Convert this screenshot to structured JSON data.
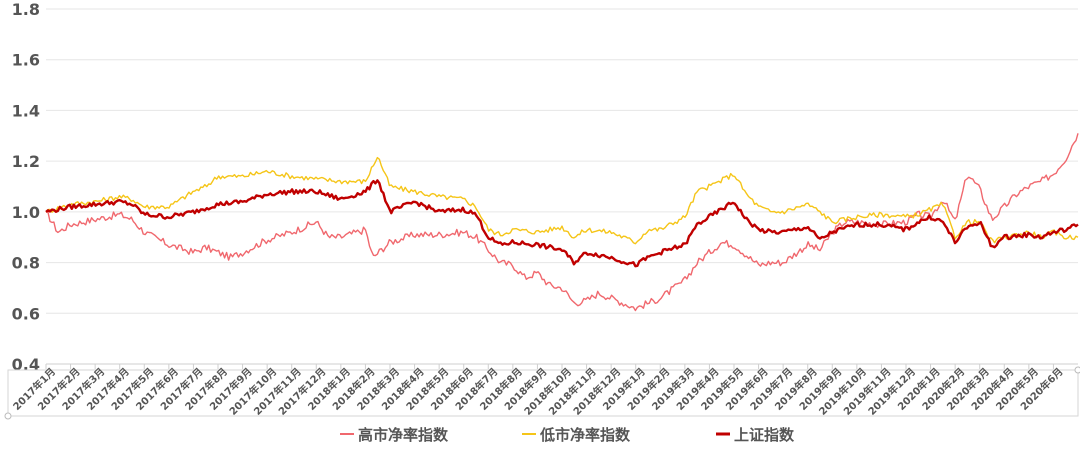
{
  "chart_data": {
    "type": "line",
    "title": "",
    "xlabel": "",
    "ylabel": "",
    "ylim": [
      0.4,
      1.8
    ],
    "yticks": [
      "0.4",
      "0.6",
      "0.8",
      "1.0",
      "1.2",
      "1.4",
      "1.6",
      "1.8"
    ],
    "grid": "horizontal",
    "legend_position": "bottom",
    "categories": [
      "2017年1月",
      "2017年2月",
      "2017年3月",
      "2017年4月",
      "2017年5月",
      "2017年6月",
      "2017年7月",
      "2017年8月",
      "2017年9月",
      "2017年10月",
      "2017年11月",
      "2017年12月",
      "2018年1月",
      "2018年2月",
      "2018年3月",
      "2018年4月",
      "2018年5月",
      "2018年6月",
      "2018年7月",
      "2018年8月",
      "2018年9月",
      "2018年10月",
      "2018年11月",
      "2018年12月",
      "2019年1月",
      "2019年2月",
      "2019年3月",
      "2019年4月",
      "2019年5月",
      "2019年6月",
      "2019年7月",
      "2019年8月",
      "2019年9月",
      "2019年10月",
      "2019年11月",
      "2019年12月",
      "2020年1月",
      "2020年2月",
      "2020年3月",
      "2020年4月",
      "2020年5月",
      "2020年6月"
    ],
    "series": [
      {
        "name": "高市净率指数",
        "color": "#f0686e",
        "width": 1.4,
        "points": [
          [
            0,
            1.0
          ],
          [
            0.5,
            0.92
          ],
          [
            1,
            0.95
          ],
          [
            2,
            0.97
          ],
          [
            3,
            0.99
          ],
          [
            3.5,
            0.97
          ],
          [
            4,
            0.92
          ],
          [
            5,
            0.87
          ],
          [
            6,
            0.84
          ],
          [
            6.5,
            0.86
          ],
          [
            7,
            0.84
          ],
          [
            7.5,
            0.82
          ],
          [
            8,
            0.84
          ],
          [
            9,
            0.89
          ],
          [
            10,
            0.92
          ],
          [
            11,
            0.96
          ],
          [
            11.5,
            0.9
          ],
          [
            12,
            0.9
          ],
          [
            13,
            0.93
          ],
          [
            13.3,
            0.82
          ],
          [
            14,
            0.88
          ],
          [
            15,
            0.91
          ],
          [
            16,
            0.91
          ],
          [
            17,
            0.92
          ],
          [
            17.5,
            0.9
          ],
          [
            18,
            0.85
          ],
          [
            18.5,
            0.8
          ],
          [
            19,
            0.79
          ],
          [
            19.5,
            0.74
          ],
          [
            20,
            0.76
          ],
          [
            20.5,
            0.71
          ],
          [
            21,
            0.7
          ],
          [
            21.5,
            0.64
          ],
          [
            22,
            0.65
          ],
          [
            22.5,
            0.68
          ],
          [
            23,
            0.66
          ],
          [
            23.5,
            0.64
          ],
          [
            24,
            0.62
          ],
          [
            24.5,
            0.64
          ],
          [
            25,
            0.66
          ],
          [
            26,
            0.73
          ],
          [
            26.5,
            0.8
          ],
          [
            27,
            0.84
          ],
          [
            27.5,
            0.88
          ],
          [
            28,
            0.87
          ],
          [
            28.5,
            0.83
          ],
          [
            29,
            0.79
          ],
          [
            29.5,
            0.8
          ],
          [
            30,
            0.8
          ],
          [
            31,
            0.87
          ],
          [
            31.5,
            0.85
          ],
          [
            32,
            0.92
          ],
          [
            32.5,
            0.96
          ],
          [
            33,
            0.96
          ],
          [
            34,
            0.95
          ],
          [
            35,
            0.96
          ],
          [
            35.5,
            0.99
          ],
          [
            36,
            0.98
          ],
          [
            36.5,
            1.05
          ],
          [
            37,
            0.96
          ],
          [
            37.5,
            1.15
          ],
          [
            38,
            1.09
          ],
          [
            38.5,
            0.97
          ],
          [
            39,
            1.02
          ],
          [
            39.5,
            1.07
          ],
          [
            40,
            1.1
          ],
          [
            40.5,
            1.12
          ],
          [
            41,
            1.15
          ],
          [
            41.5,
            1.21
          ],
          [
            42,
            1.31
          ]
        ]
      },
      {
        "name": "低市净率指数",
        "color": "#f5c518",
        "width": 1.4,
        "points": [
          [
            0,
            1.0
          ],
          [
            1,
            1.03
          ],
          [
            2,
            1.04
          ],
          [
            3,
            1.06
          ],
          [
            3.5,
            1.05
          ],
          [
            4,
            1.02
          ],
          [
            5,
            1.02
          ],
          [
            6,
            1.08
          ],
          [
            6.5,
            1.1
          ],
          [
            7,
            1.14
          ],
          [
            8,
            1.14
          ],
          [
            9,
            1.16
          ],
          [
            10,
            1.14
          ],
          [
            11,
            1.13
          ],
          [
            12,
            1.12
          ],
          [
            13,
            1.12
          ],
          [
            13.5,
            1.22
          ],
          [
            14,
            1.1
          ],
          [
            15,
            1.08
          ],
          [
            16,
            1.06
          ],
          [
            17,
            1.05
          ],
          [
            17.5,
            1.02
          ],
          [
            18,
            0.93
          ],
          [
            18.5,
            0.91
          ],
          [
            19,
            0.93
          ],
          [
            20,
            0.92
          ],
          [
            21,
            0.94
          ],
          [
            21.5,
            0.9
          ],
          [
            22,
            0.93
          ],
          [
            23,
            0.92
          ],
          [
            24,
            0.88
          ],
          [
            24.5,
            0.93
          ],
          [
            25,
            0.93
          ],
          [
            26,
            0.98
          ],
          [
            26.5,
            1.08
          ],
          [
            27,
            1.1
          ],
          [
            28,
            1.15
          ],
          [
            28.5,
            1.07
          ],
          [
            29,
            1.02
          ],
          [
            29.5,
            1.0
          ],
          [
            30,
            1.0
          ],
          [
            31,
            1.03
          ],
          [
            31.5,
            1.0
          ],
          [
            32,
            0.96
          ],
          [
            33,
            0.98
          ],
          [
            34,
            0.99
          ],
          [
            35,
            0.98
          ],
          [
            35.5,
            0.99
          ],
          [
            36,
            1.01
          ],
          [
            36.5,
            1.03
          ],
          [
            37,
            0.9
          ],
          [
            37.5,
            0.96
          ],
          [
            38,
            0.96
          ],
          [
            38.5,
            0.88
          ],
          [
            39,
            0.9
          ],
          [
            40,
            0.92
          ],
          [
            40.5,
            0.9
          ],
          [
            41,
            0.92
          ],
          [
            41.5,
            0.9
          ],
          [
            42,
            0.9
          ]
        ]
      },
      {
        "name": "上证指数",
        "color": "#c00000",
        "width": 2.4,
        "points": [
          [
            0,
            1.0
          ],
          [
            1,
            1.02
          ],
          [
            2,
            1.03
          ],
          [
            3,
            1.04
          ],
          [
            3.5,
            1.03
          ],
          [
            4,
            0.99
          ],
          [
            5,
            0.98
          ],
          [
            6,
            1.0
          ],
          [
            7,
            1.03
          ],
          [
            8,
            1.04
          ],
          [
            9,
            1.07
          ],
          [
            10,
            1.08
          ],
          [
            11,
            1.08
          ],
          [
            12,
            1.05
          ],
          [
            13,
            1.08
          ],
          [
            13.5,
            1.13
          ],
          [
            14,
            1.0
          ],
          [
            15,
            1.04
          ],
          [
            16,
            1.0
          ],
          [
            17,
            1.01
          ],
          [
            17.5,
            0.99
          ],
          [
            18,
            0.9
          ],
          [
            18.5,
            0.87
          ],
          [
            19,
            0.88
          ],
          [
            20,
            0.87
          ],
          [
            21,
            0.85
          ],
          [
            21.5,
            0.8
          ],
          [
            22,
            0.84
          ],
          [
            23,
            0.82
          ],
          [
            24,
            0.79
          ],
          [
            24.5,
            0.82
          ],
          [
            25,
            0.84
          ],
          [
            26,
            0.87
          ],
          [
            26.5,
            0.95
          ],
          [
            27,
            0.98
          ],
          [
            28,
            1.04
          ],
          [
            28.5,
            0.97
          ],
          [
            29,
            0.93
          ],
          [
            29.5,
            0.92
          ],
          [
            30,
            0.92
          ],
          [
            31,
            0.94
          ],
          [
            31.5,
            0.89
          ],
          [
            32,
            0.92
          ],
          [
            33,
            0.95
          ],
          [
            34,
            0.95
          ],
          [
            35,
            0.93
          ],
          [
            35.5,
            0.96
          ],
          [
            36,
            0.98
          ],
          [
            36.5,
            0.96
          ],
          [
            37,
            0.88
          ],
          [
            37.5,
            0.94
          ],
          [
            38,
            0.96
          ],
          [
            38.5,
            0.86
          ],
          [
            39,
            0.9
          ],
          [
            40,
            0.91
          ],
          [
            40.5,
            0.9
          ],
          [
            41,
            0.92
          ],
          [
            41.5,
            0.93
          ],
          [
            42,
            0.95
          ]
        ]
      }
    ]
  }
}
